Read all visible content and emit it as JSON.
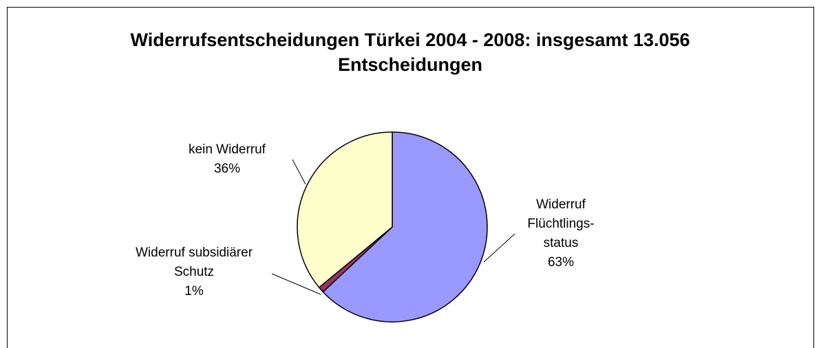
{
  "chart_data": {
    "type": "pie",
    "title": "Widerrufsentscheidungen Türkei 2004 - 2008: insgesamt 13.056 Entscheidungen",
    "categories": [
      "Widerruf\nFlüchtlings-\nstatus",
      "Widerruf subsidiärer\nSchutz",
      "kein Widerruf"
    ],
    "values": [
      63,
      1,
      36
    ],
    "value_labels": [
      "63%",
      "1%",
      "36%"
    ],
    "colors": [
      "#9999ff",
      "#993366",
      "#ffffcc"
    ]
  }
}
